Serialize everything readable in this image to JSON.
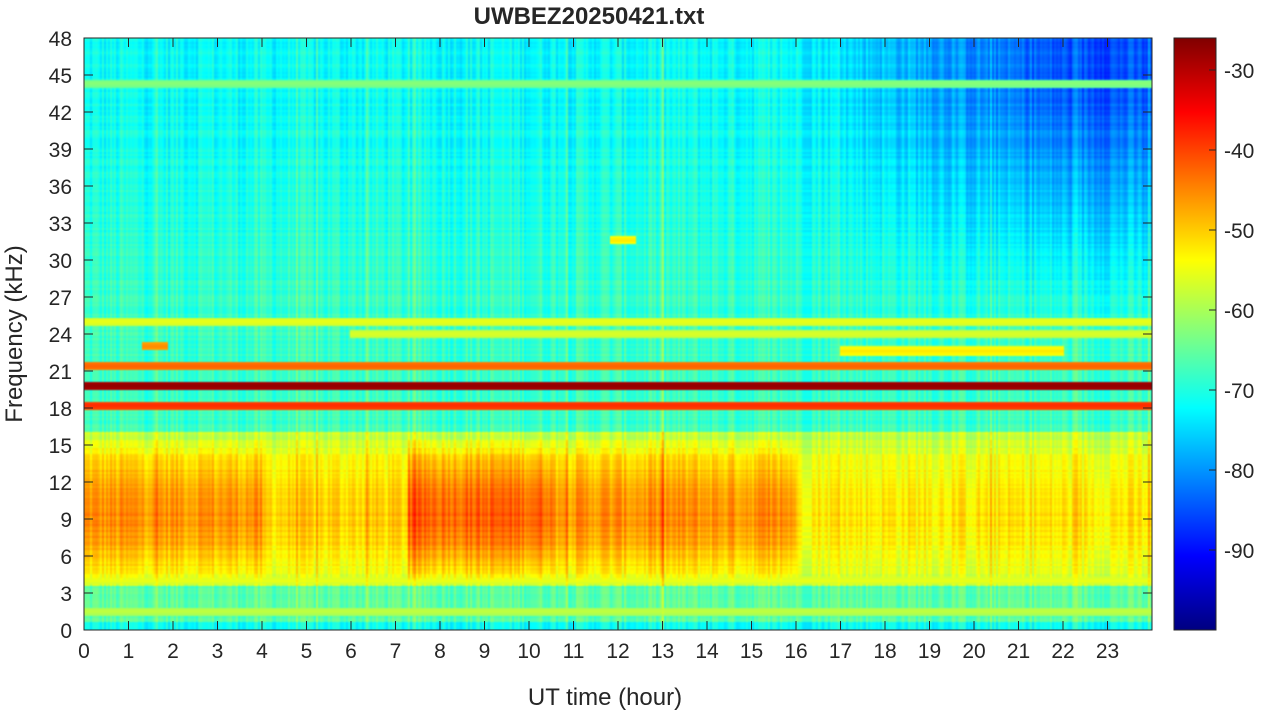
{
  "chart_data": {
    "type": "heatmap",
    "title": "UWBEZ20250421.txt",
    "xlabel": "UT time (hour)",
    "ylabel": "Frequency (kHz)",
    "xlim": [
      0,
      24
    ],
    "ylim": [
      0,
      48
    ],
    "x_ticks": [
      0,
      1,
      2,
      3,
      4,
      5,
      6,
      7,
      8,
      9,
      10,
      11,
      12,
      13,
      14,
      15,
      16,
      17,
      18,
      19,
      20,
      21,
      22,
      23
    ],
    "y_ticks": [
      0,
      3,
      6,
      9,
      12,
      15,
      18,
      21,
      24,
      27,
      30,
      33,
      36,
      39,
      42,
      45,
      48
    ],
    "colorbar": {
      "colormap": "jet",
      "range": [
        -100,
        -26
      ],
      "ticks": [
        -30,
        -40,
        -50,
        -60,
        -70,
        -80,
        -90
      ]
    },
    "grid": false,
    "narrowband_lines": [
      {
        "freq_khz": 19.8,
        "level_db": -27,
        "x_range": [
          0,
          24
        ]
      },
      {
        "freq_khz": 18.2,
        "level_db": -38,
        "x_range": [
          0,
          24
        ]
      },
      {
        "freq_khz": 21.4,
        "level_db": -42,
        "x_range": [
          0,
          24
        ]
      },
      {
        "freq_khz": 25.0,
        "level_db": -55,
        "x_range": [
          0,
          24
        ]
      },
      {
        "freq_khz": 24.0,
        "level_db": -56,
        "x_range": [
          6,
          24
        ]
      },
      {
        "freq_khz": 22.6,
        "level_db": -52,
        "x_range": [
          17,
          22
        ]
      },
      {
        "freq_khz": 23.0,
        "level_db": -45,
        "x_range": [
          1.3,
          1.9
        ]
      },
      {
        "freq_khz": 44.3,
        "level_db": -62,
        "x_range": [
          0,
          24
        ]
      },
      {
        "freq_khz": 4.0,
        "level_db": -55,
        "x_range": [
          0,
          24
        ]
      },
      {
        "freq_khz": 1.5,
        "level_db": -58,
        "x_range": [
          0,
          24
        ]
      },
      {
        "freq_khz": 31.6,
        "level_db": -52,
        "x_range": [
          11.8,
          12.4
        ]
      }
    ],
    "broadband_emission": {
      "freq_range_khz": [
        4,
        16
      ],
      "peak_level_db": -42,
      "strongest_time_range": [
        7.3,
        10.5
      ]
    },
    "background_level_db": {
      "low_freq": -68,
      "high_freq_day": -72,
      "high_freq_late": -85
    }
  }
}
